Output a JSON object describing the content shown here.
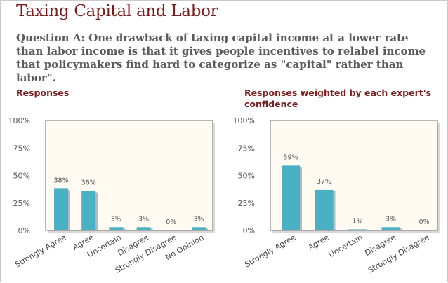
{
  "page": {
    "title": "Taxing Capital and Labor",
    "question": "Question A: One drawback of taxing capital income at a lower rate than labor income is that it gives people incentives to relabel income that policymakers find hard to categorize as \"capital\" rather than labor\"."
  },
  "colors": {
    "bar": "#4ab0c4",
    "bar_shadow": "#b9b9b9",
    "plot_bg": "#fffbf3",
    "plot_border": "#8a8a8a",
    "title": "#7a1f1f"
  },
  "chart_data": [
    {
      "type": "bar",
      "title": "Responses",
      "categories": [
        "Strongly Agree",
        "Agree",
        "Uncertain",
        "Disagree",
        "Strongly Disagree",
        "No Opinion"
      ],
      "values": [
        38,
        36,
        3,
        3,
        0,
        3
      ],
      "data_labels": [
        "38%",
        "36%",
        "3%",
        "3%",
        "0%",
        "3%"
      ],
      "yticks": [
        "0%",
        "25%",
        "50%",
        "75%",
        "100%"
      ],
      "ylim": [
        0,
        100
      ],
      "grid": false
    },
    {
      "type": "bar",
      "title": "Responses weighted by each expert's confidence",
      "categories": [
        "Strongly Agree",
        "Agree",
        "Uncertain",
        "Disagree",
        "Strongly Disagree"
      ],
      "values": [
        59,
        37,
        1,
        3,
        0
      ],
      "data_labels": [
        "59%",
        "37%",
        "1%",
        "3%",
        "0%"
      ],
      "yticks": [
        "0%",
        "25%",
        "50%",
        "75%",
        "100%"
      ],
      "ylim": [
        0,
        100
      ],
      "grid": false
    }
  ]
}
